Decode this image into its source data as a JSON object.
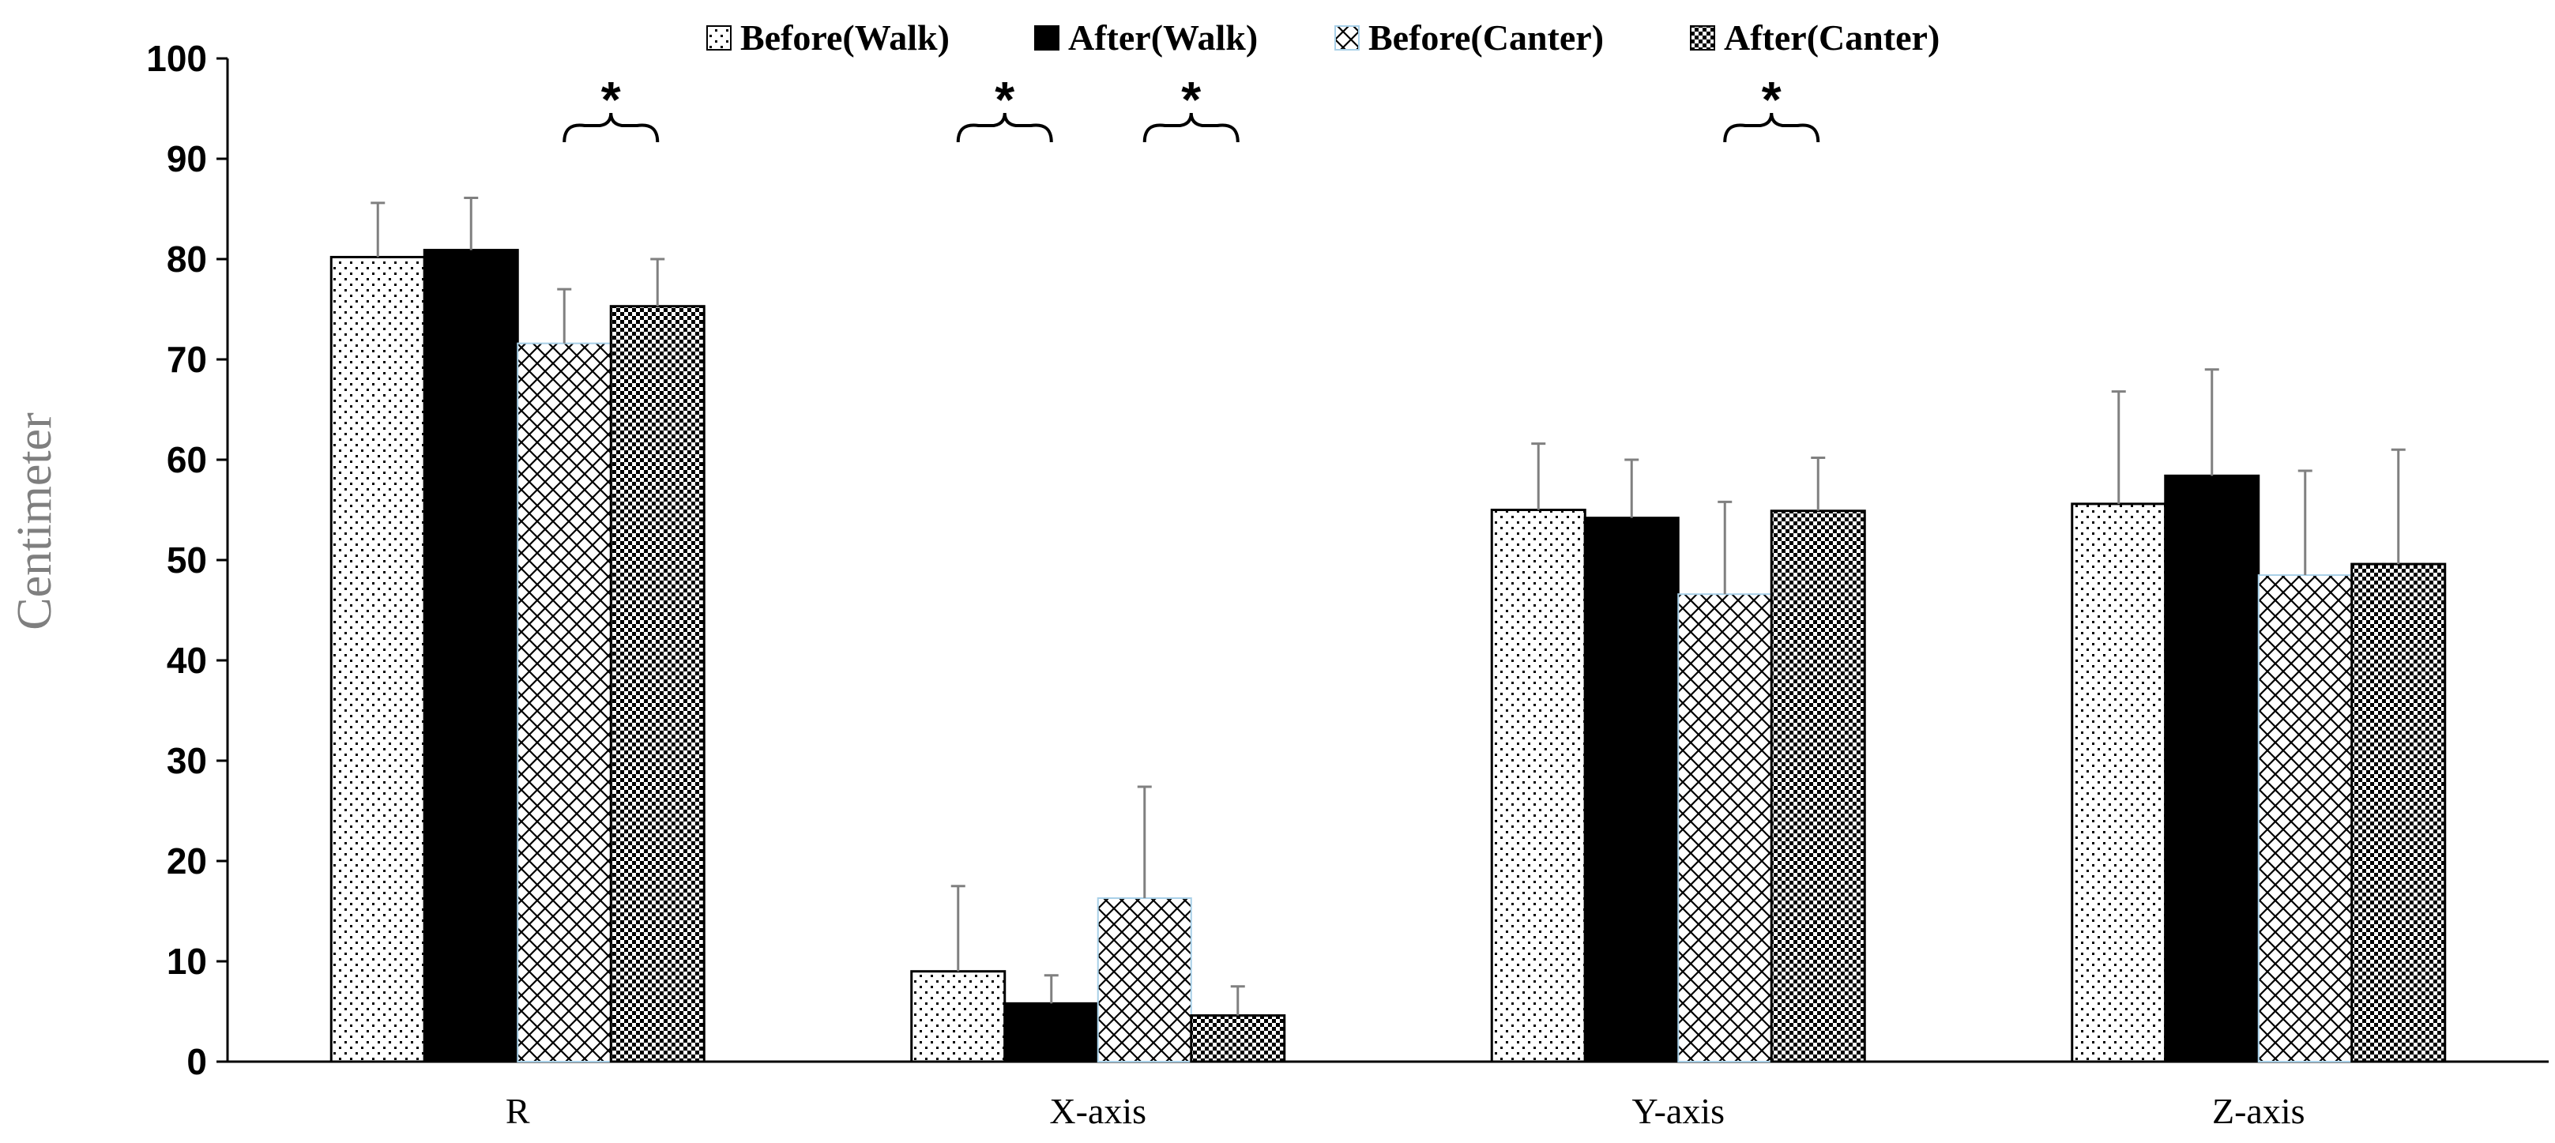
{
  "chart_data": {
    "type": "bar",
    "title": "",
    "xlabel": "",
    "ylabel": "Centimeter",
    "ylim": [
      0,
      100
    ],
    "yticks": [
      0,
      10,
      20,
      30,
      40,
      50,
      60,
      70,
      80,
      90,
      100
    ],
    "categories": [
      "R",
      "X-axis",
      "Y-axis",
      "Z-axis"
    ],
    "legend_position": "top-center",
    "series": [
      {
        "name": "Before(Walk)",
        "pattern": "dots",
        "values": [
          80.2,
          9.0,
          55.0,
          55.6
        ],
        "errors": [
          5.4,
          8.5,
          6.6,
          11.2
        ]
      },
      {
        "name": "After(Walk)",
        "pattern": "solid",
        "values": [
          80.9,
          5.8,
          54.2,
          58.4
        ],
        "errors": [
          5.2,
          2.8,
          5.8,
          10.6
        ]
      },
      {
        "name": "Before(Canter)",
        "pattern": "crosshatch",
        "values": [
          71.6,
          16.3,
          46.6,
          48.5
        ],
        "errors": [
          5.4,
          11.1,
          9.2,
          10.4
        ]
      },
      {
        "name": "After(Canter)",
        "pattern": "checker",
        "values": [
          75.3,
          4.6,
          54.9,
          49.6
        ],
        "errors": [
          4.7,
          2.9,
          5.3,
          11.4
        ]
      }
    ],
    "annotations": [
      {
        "label": "*",
        "category": "R",
        "between": [
          "Before(Canter)",
          "After(Canter)"
        ]
      },
      {
        "label": "*",
        "category": "X-axis",
        "between": [
          "Before(Walk)",
          "After(Walk)"
        ]
      },
      {
        "label": "*",
        "category": "X-axis",
        "between": [
          "Before(Canter)",
          "After(Canter)"
        ]
      },
      {
        "label": "*",
        "category": "Y-axis",
        "between": [
          "Before(Canter)",
          "After(Canter)"
        ]
      }
    ],
    "colors": {
      "bar_fill": "#ffffff",
      "ink": "#000000",
      "error_bar": "#808080",
      "axis_title": "#7f7f7f",
      "canter_outline": "#a8d0e8"
    }
  }
}
